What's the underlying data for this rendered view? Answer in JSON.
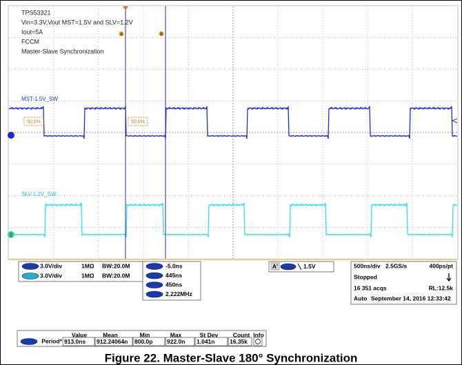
{
  "annotations": [
    "TPS53321",
    "Vin=3.3V,Vout MST=1.5V and SLV=1.2V",
    "Iout=5A",
    "FCCM",
    "Master-Slave Synchronization"
  ],
  "cursors": [
    "a",
    "b"
  ],
  "channels": {
    "mst": "MST-1.5V_SW",
    "slv": "SLV-1.2V_SW",
    "slv_marker": "2"
  },
  "levels": [
    "50.0%",
    "50.0%"
  ],
  "channel_settings": [
    {
      "scale": "3.0V/div",
      "impedance": "1MΩ",
      "bandwidth": "BW:20.0M"
    },
    {
      "scale": "3.0V/div",
      "impedance": "1MΩ",
      "bandwidth": "BW:20.0M"
    }
  ],
  "cursor_readout": [
    "-5.0ns",
    "445ns",
    "450ns",
    "2.222MHz"
  ],
  "trigger": {
    "source": "A'",
    "level": "1.5V"
  },
  "acquisition": {
    "timebase": "500ns/div",
    "sample_rate": "2.5GS/s",
    "resolution": "400ps/pt",
    "state": "Stopped",
    "acqs": "16 351 acqs",
    "record_length": "RL:12.5k",
    "mode": "Auto",
    "timestamp": "September 14, 2016 12:33:42"
  },
  "measurements": {
    "headers": [
      "Value",
      "Mean",
      "Min",
      "Max",
      "St Dev",
      "Count",
      "Info"
    ],
    "rows": [
      [
        "Period*",
        "913.0ns",
        "912.24064n",
        "800.0p",
        "922.0n",
        "1.041n",
        "16.35k"
      ]
    ]
  },
  "caption": "Figure 22. Master-Slave 180° Synchronization"
}
